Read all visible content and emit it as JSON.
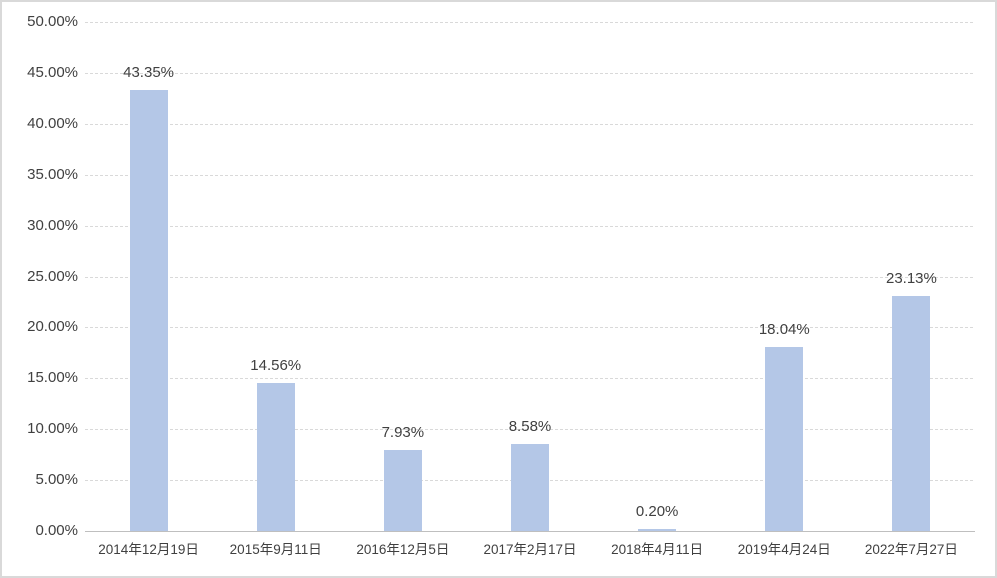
{
  "chart_data": {
    "type": "bar",
    "title": "",
    "xlabel": "",
    "ylabel": "",
    "categories": [
      "2014年12月19日",
      "2015年9月11日",
      "2016年12月5日",
      "2017年2月17日",
      "2018年4月11日",
      "2019年4月24日",
      "2022年7月27日"
    ],
    "values": [
      43.35,
      14.56,
      7.93,
      8.58,
      0.2,
      18.04,
      23.13
    ],
    "data_labels": [
      "43.35%",
      "14.56%",
      "7.93%",
      "8.58%",
      "0.20%",
      "18.04%",
      "23.13%"
    ],
    "ylim": [
      0,
      50
    ],
    "ytick_step": 5,
    "ytick_labels": [
      "0.00%",
      "5.00%",
      "10.00%",
      "15.00%",
      "20.00%",
      "25.00%",
      "30.00%",
      "35.00%",
      "40.00%",
      "45.00%",
      "50.00%"
    ],
    "grid": true,
    "legend": false,
    "colors": {
      "bar_fill": "#b4c7e7",
      "gridline": "#d9d9d9",
      "axis_line": "#bfbfbf",
      "text": "#404040",
      "background": "#ffffff",
      "border": "#d9d9d9"
    }
  }
}
